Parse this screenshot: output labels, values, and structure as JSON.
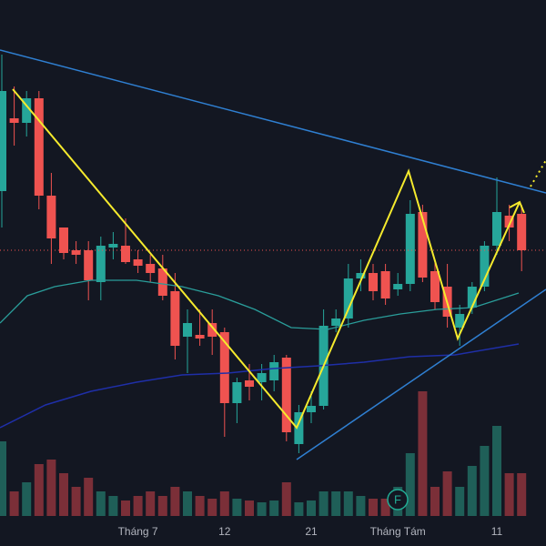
{
  "chart_data": {
    "type": "candlestick",
    "categories": [
      null,
      null,
      null,
      null,
      null,
      null,
      null,
      null,
      null,
      null,
      null,
      "Tháng 7",
      null,
      null,
      null,
      null,
      null,
      null,
      "12",
      null,
      null,
      null,
      null,
      null,
      null,
      "21",
      null,
      null,
      null,
      null,
      null,
      null,
      "Tháng Tám",
      null,
      null,
      null,
      null,
      null,
      null,
      null,
      "11",
      null,
      null
    ],
    "open": [
      390,
      470,
      465,
      492,
      385,
      350,
      325,
      325,
      290,
      328,
      330,
      315,
      310,
      305,
      280,
      230,
      232,
      245,
      235,
      157,
      182,
      180,
      182,
      207,
      112,
      147,
      154,
      242,
      250,
      294,
      300,
      302,
      282,
      288,
      367,
      302,
      285,
      240,
      262,
      285,
      330,
      363,
      365
    ],
    "high": [
      540,
      505,
      500,
      500,
      410,
      350,
      335,
      335,
      340,
      345,
      360,
      325,
      320,
      320,
      300,
      260,
      260,
      260,
      240,
      185,
      200,
      200,
      210,
      210,
      155,
      170,
      260,
      260,
      310,
      315,
      310,
      310,
      300,
      380,
      375,
      315,
      310,
      265,
      290,
      335,
      405,
      375,
      375
    ],
    "low": [
      350,
      440,
      450,
      370,
      310,
      315,
      310,
      270,
      270,
      315,
      310,
      300,
      290,
      270,
      205,
      190,
      220,
      210,
      120,
      135,
      160,
      160,
      170,
      115,
      102,
      135,
      150,
      235,
      240,
      280,
      270,
      265,
      275,
      280,
      290,
      260,
      240,
      220,
      255,
      280,
      320,
      335,
      302
    ],
    "close": [
      500,
      465,
      492,
      385,
      338,
      322,
      320,
      292,
      330,
      332,
      312,
      308,
      300,
      275,
      220,
      245,
      228,
      230,
      157,
      180,
      175,
      190,
      202,
      125,
      147,
      154,
      242,
      250,
      294,
      300,
      280,
      272,
      288,
      365,
      295,
      268,
      252,
      255,
      285,
      330,
      367,
      350,
      325
    ],
    "volume": [
      82,
      27,
      37,
      57,
      62,
      47,
      32,
      42,
      27,
      22,
      17,
      22,
      27,
      22,
      32,
      27,
      22,
      19,
      27,
      19,
      17,
      15,
      17,
      37,
      15,
      17,
      27,
      27,
      27,
      22,
      19,
      19,
      32,
      69,
      137,
      32,
      49,
      32,
      55,
      77,
      99,
      47,
      47
    ],
    "ylim": [
      0,
      600
    ],
    "volume_lim": [
      0,
      200
    ],
    "up_color": "#26a69a",
    "down_color": "#ef5350",
    "volume_up_color": "#1f5f58",
    "volume_down_color": "#7b2f38",
    "marker_label": "F"
  }
}
